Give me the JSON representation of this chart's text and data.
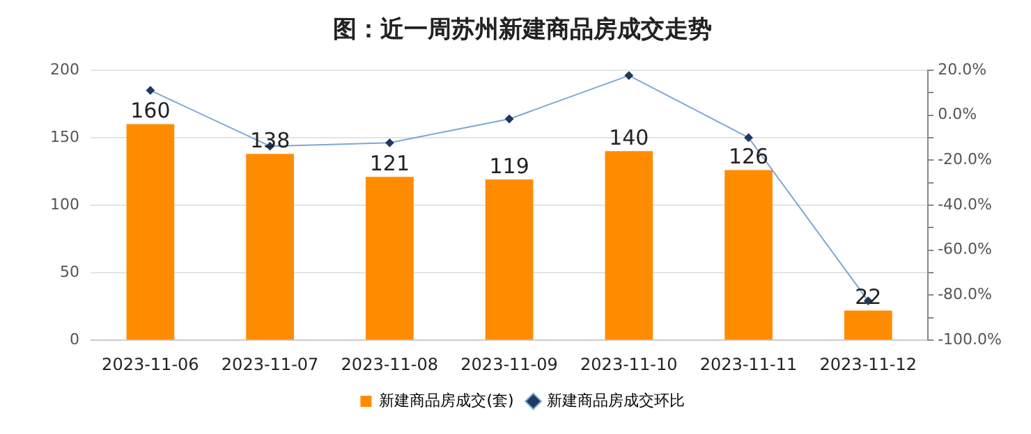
{
  "chart_data": {
    "type": "bar",
    "title": "图：近一周苏州新建商品房成交走势",
    "categories": [
      "2023-11-06",
      "2023-11-07",
      "2023-11-08",
      "2023-11-09",
      "2023-11-10",
      "2023-11-11",
      "2023-11-12"
    ],
    "series": [
      {
        "name": "新建商品房成交(套)",
        "color": "#ff8c00",
        "values": [
          160,
          138,
          121,
          119,
          140,
          126,
          22
        ],
        "value_labels": [
          "160",
          "138",
          "121",
          "119",
          "140",
          "126",
          "22"
        ]
      },
      {
        "name": "新建商品房成交环比",
        "type": "line",
        "axis": "y2",
        "color": "#7ea8d4",
        "marker": "diamond",
        "values": [
          11,
          -13.8,
          -12.3,
          -1.7,
          17.6,
          -10,
          -82.5
        ]
      }
    ],
    "ylim": [
      0,
      200
    ],
    "yticks": [
      0,
      50,
      100,
      150,
      200
    ],
    "y2lim": [
      -100,
      20
    ],
    "y2ticks": [
      {
        "value": 20,
        "label": "20.0%"
      },
      {
        "value": 10,
        "label": null
      },
      {
        "value": 0,
        "label": "0.0%"
      },
      {
        "value": -10,
        "label": null
      },
      {
        "value": -20,
        "label": "-20.0%"
      },
      {
        "value": -30,
        "label": null
      },
      {
        "value": -40,
        "label": "-40.0%"
      },
      {
        "value": -50,
        "label": null
      },
      {
        "value": -60,
        "label": "-60.0%"
      },
      {
        "value": -70,
        "label": null
      },
      {
        "value": -80,
        "label": "-80.0%"
      },
      {
        "value": -90,
        "label": null
      },
      {
        "value": -100,
        "label": "-100.0%"
      }
    ],
    "grid": "y",
    "legend": "bottom"
  }
}
